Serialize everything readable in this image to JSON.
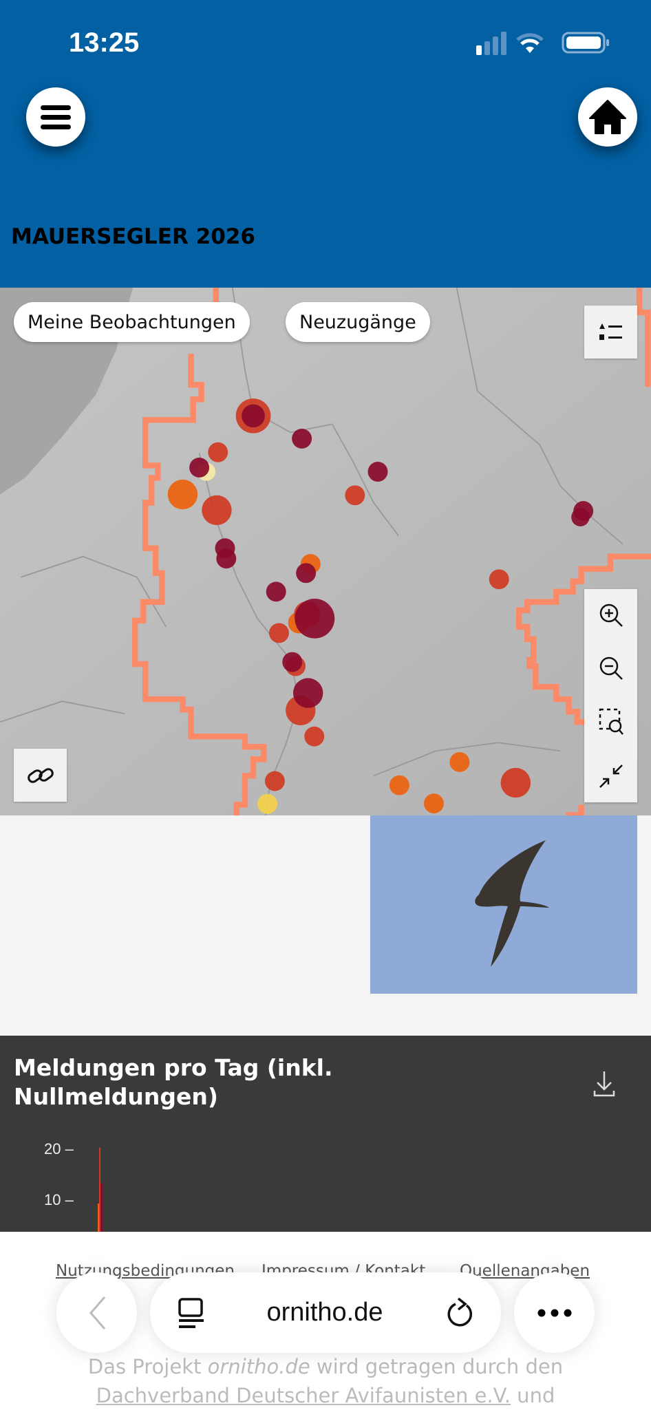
{
  "status_bar": {
    "time": "13:25"
  },
  "header": {
    "title": "MAUERSEGLER 2026",
    "menu_icon": "hamburger-icon",
    "home_icon": "home-icon",
    "color": "#0260a3"
  },
  "map": {
    "chips": [
      "Meine Beobachtungen",
      "Neuzugänge"
    ],
    "controls": [
      "legend-icon",
      "zoom-in-icon",
      "zoom-out-icon",
      "zoom-area-icon",
      "collapse-icon",
      "link-icon"
    ],
    "colors": {
      "dark": "#8a0a2c",
      "red": "#cf3a22",
      "orange": "#ec620e",
      "yellow": "#f4d14a",
      "pale": "#f7e9a6",
      "border": "#fb8a68"
    }
  },
  "chart": {
    "title": "Meldungen pro Tag (inkl. Nullmeldungen)",
    "download_icon": "download-icon"
  },
  "chart_data": {
    "type": "bar",
    "title": "Meldungen pro Tag (inkl. Nullmeldungen)",
    "yticks": [
      "20",
      "10"
    ],
    "series": [
      {
        "color": "#cf3a22",
        "values": [
          21
        ]
      },
      {
        "color": "#8a0a2c",
        "values": [
          14
        ]
      },
      {
        "color": "#ec620e",
        "values": [
          10
        ]
      }
    ]
  },
  "footer": {
    "links": [
      "Nutzungsbedingungen",
      "Impressum / Kontakt",
      "Quellenangaben"
    ],
    "text_prefix": "Das Projekt ",
    "text_site": "ornitho.de",
    "text_suffix": " wird getragen durch den",
    "text_link": "Dachverband Deutscher Avifaunisten e.V.",
    "text_end": " und"
  },
  "browser": {
    "url": "ornitho.de"
  }
}
